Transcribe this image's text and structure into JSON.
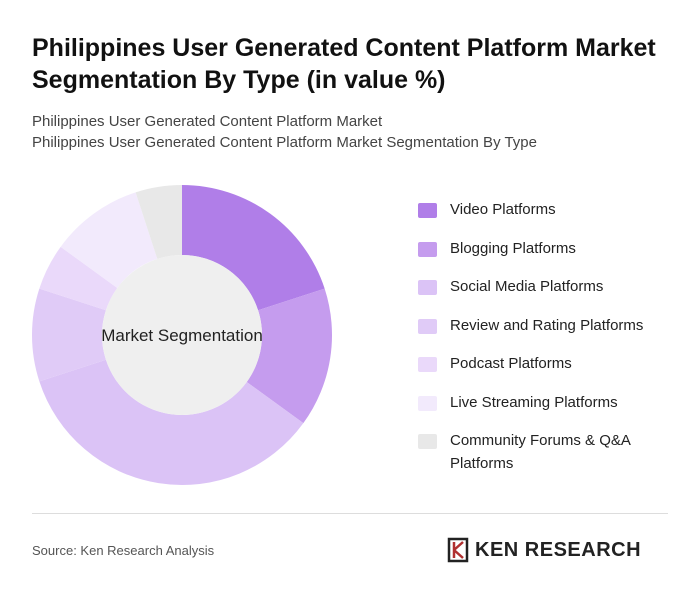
{
  "chart_data": {
    "type": "donut",
    "title": "Philippines User Generated Content Platform Market Segmentation By Type (in value %)",
    "subtitle": [
      "Philippines User Generated Content Platform Market",
      "Philippines User Generated Content Platform Market Segmentation By Type"
    ],
    "center_label": "Market Segmentation",
    "categories": [
      "Video Platforms",
      "Blogging Platforms",
      "Social Media Platforms",
      "Review and Rating Platforms",
      "Podcast Platforms",
      "Live Streaming Platforms",
      "Community Forums & Q&A Platforms"
    ],
    "values": [
      20,
      15,
      35,
      10,
      5,
      10,
      5
    ],
    "colors": [
      "#b07ee8",
      "#c59cee",
      "#dbc3f6",
      "#e0cbf7",
      "#ead9fa",
      "#f2eafc",
      "#e8e8e8"
    ],
    "source": "Source: Ken Research Analysis",
    "logo": "KEN RESEARCH"
  }
}
